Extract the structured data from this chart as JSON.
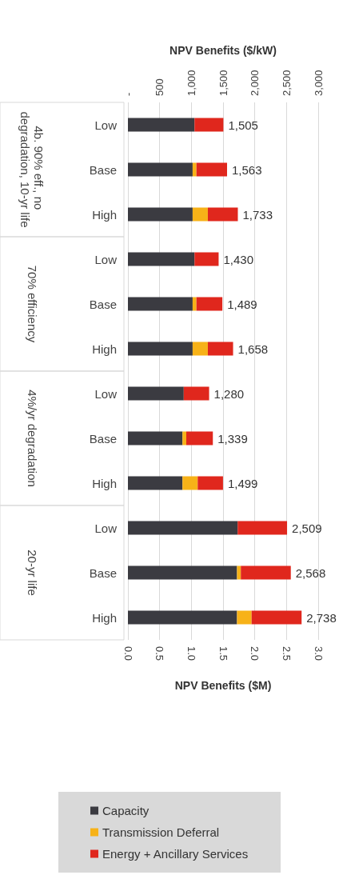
{
  "chart_data": {
    "type": "bar",
    "orientation": "horizontal",
    "stacked": true,
    "xlabel": "NPV Benefits ($/kW)",
    "x2label": "NPV Benefits ($M)",
    "categories": [
      "Low",
      "Base",
      "High",
      "Low",
      "Base",
      "High",
      "Low",
      "Base",
      "High",
      "Low",
      "Base",
      "High"
    ],
    "annotations": [
      "4b. 90% eff., no degradation, 10-yr life",
      "70% efficiency",
      "4%/yr degradation",
      "20-yr life"
    ],
    "series": [
      {
        "name": "Capacity",
        "color": "#3b3b41",
        "values": [
          1050,
          1020,
          1020,
          1050,
          1020,
          1020,
          880,
          860,
          860,
          1730,
          1720,
          1720
        ]
      },
      {
        "name": "Transmission Deferral",
        "color": "#f7b218",
        "values": [
          0,
          60,
          240,
          0,
          60,
          240,
          0,
          60,
          240,
          0,
          60,
          230
        ]
      },
      {
        "name": "Energy + Ancillary Services",
        "color": "#e0271d",
        "values": [
          455,
          483,
          473,
          380,
          409,
          398,
          400,
          419,
          399,
          779,
          788,
          788
        ]
      }
    ],
    "totals": [
      "1,505",
      "1,563",
      "1,733",
      "1,430",
      "1,489",
      "1,658",
      "1,280",
      "1,339",
      "1,499",
      "2,509",
      "2,568",
      "2,738"
    ],
    "x2lim": [
      0,
      3
    ],
    "x2ticks": [
      {
        "value": 0,
        "label": "0.0"
      },
      0.5,
      {
        "value": 1,
        "label": "1.0"
      },
      1.5,
      {
        "value": 2,
        "label": "2.0"
      },
      2.5,
      {
        "value": 3,
        "label": "3.0"
      }
    ],
    "xlim": [
      0,
      3000
    ],
    "xticks": [
      {
        "value": 0,
        "label": "-"
      },
      500,
      {
        "value": 1000,
        "label": "1,000"
      },
      {
        "value": 1500,
        "label": "1,500"
      },
      {
        "value": 2000,
        "label": "2,000"
      },
      {
        "value": 2500,
        "label": "2,500"
      },
      {
        "value": 3000,
        "label": "3,000"
      }
    ],
    "grid": "x",
    "legend": "bottom"
  }
}
